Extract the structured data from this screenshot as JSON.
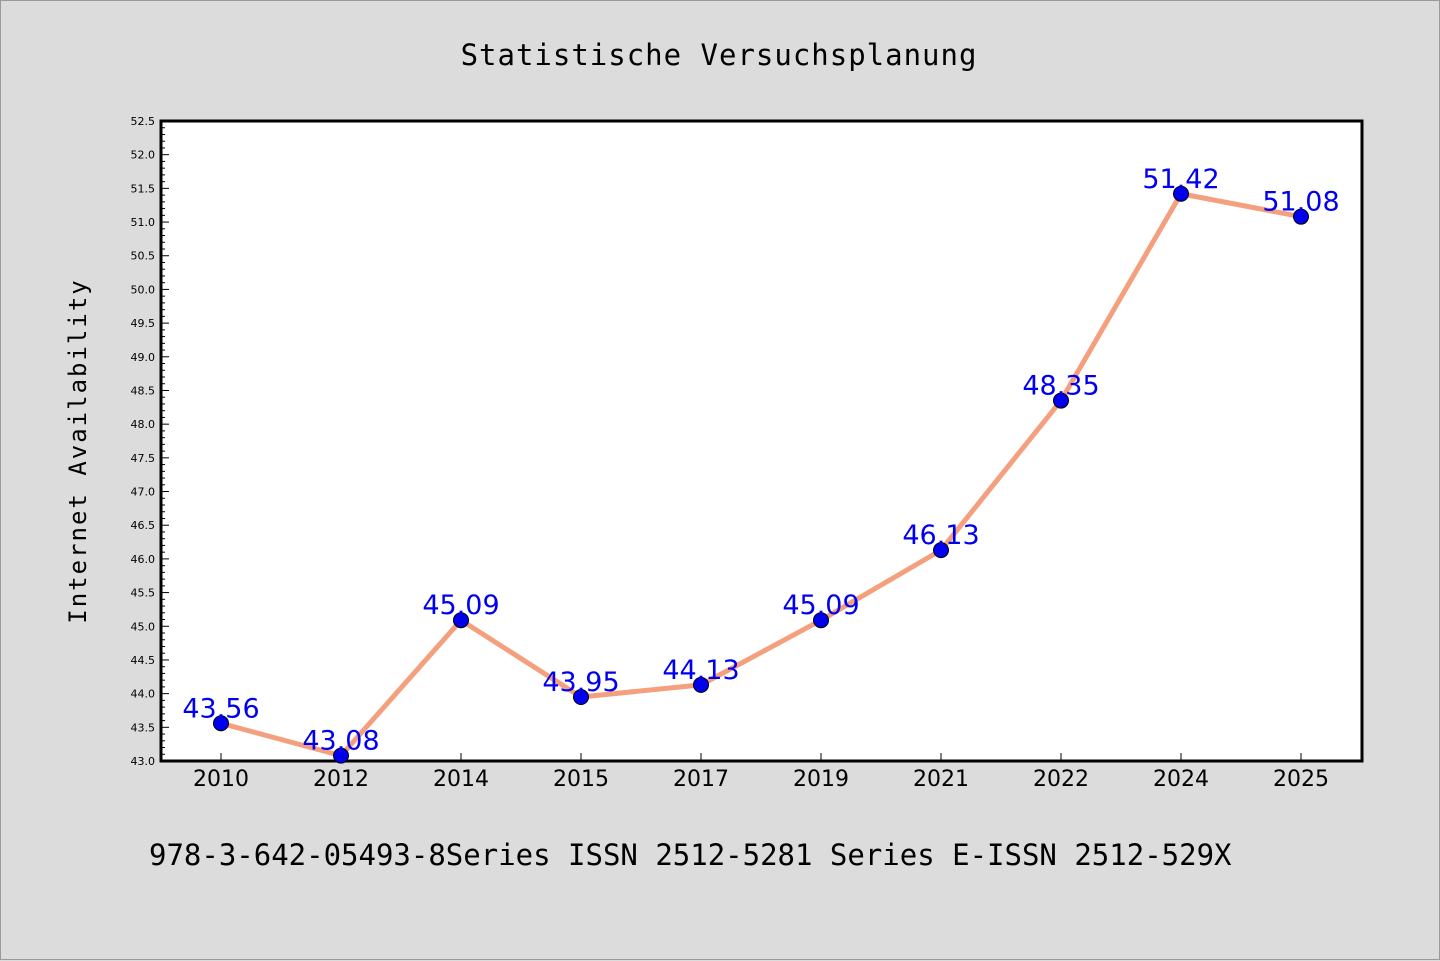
{
  "chart_data": {
    "type": "line",
    "title": "Statistische Versuchsplanung",
    "ylabel": "Internet Availability",
    "xlabel": "",
    "categories": [
      "2010",
      "2012",
      "2014",
      "2015",
      "2017",
      "2019",
      "2021",
      "2022",
      "2024",
      "2025"
    ],
    "series": [
      {
        "values": [
          43.56,
          43.08,
          45.09,
          43.95,
          44.13,
          45.09,
          46.13,
          48.35,
          51.42,
          51.08
        ],
        "labels": [
          "43.56",
          "43.08",
          "45.09",
          "43.95",
          "44.13",
          "45.09",
          "46.13",
          "48.35",
          "51.42",
          "51.08"
        ],
        "line_color": "#f4a07e",
        "marker_color": "#0000ee"
      }
    ],
    "ylim": [
      43.0,
      52.5
    ],
    "yticks": [
      "43.0",
      "43.5",
      "44.0",
      "44.5",
      "45.0",
      "45.5",
      "46.0",
      "46.5",
      "47.0",
      "47.5",
      "48.0",
      "48.5",
      "49.0",
      "49.5",
      "50.0",
      "50.5",
      "51.0",
      "51.5",
      "52.0",
      "52.5"
    ],
    "grid": false,
    "legend": "none"
  },
  "footer_text": "978-3-642-05493-8Series ISSN 2512-5281 Series E-ISSN 2512-529X",
  "colors": {
    "background": "#dcdcdc",
    "plot_background": "#ffffff",
    "axis": "#000000",
    "label_text": "#0000ee"
  }
}
